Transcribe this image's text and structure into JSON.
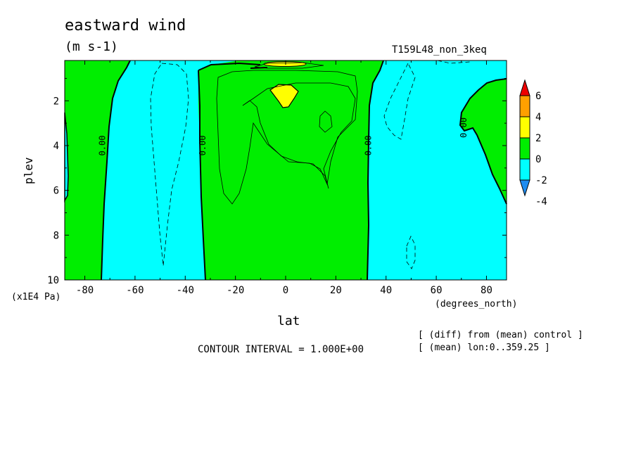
{
  "header": {
    "title": "eastward wind",
    "units": "(m s-1)",
    "run_name": "T159L48_non_3keq"
  },
  "footer": {
    "contour_interval": "CONTOUR INTERVAL = 1.000E+00",
    "note_diff": "[ (diff) from (mean) control ]",
    "note_mean": "[ (mean) lon:0..359.25 ]"
  },
  "chart_data": {
    "type": "contour",
    "xlabel": "lat",
    "ylabel": "plev",
    "x_unit_label": "(degrees_north)",
    "y_unit_label": "(x1E4 Pa)",
    "xlim": [
      -88,
      88
    ],
    "ylim": [
      10,
      0.2
    ],
    "x_ticks": [
      -80,
      -60,
      -40,
      -20,
      0,
      20,
      40,
      60,
      80
    ],
    "x_tick_labels": [
      "-80",
      "-60",
      "-40",
      "-20",
      "0",
      "20",
      "40",
      "60",
      "80"
    ],
    "y_ticks": [
      2,
      4,
      6,
      8,
      10
    ],
    "y_tick_labels": [
      "2",
      "4",
      "6",
      "8",
      "10"
    ],
    "contour_interval": 1.0,
    "colorbar": {
      "levels": [
        -4,
        -2,
        0,
        2,
        4,
        6
      ],
      "level_labels": [
        "-4",
        "-2",
        "0",
        "2",
        "4",
        "6"
      ],
      "colors": [
        "#1e8cf0",
        "#00ffff",
        "#00ee00",
        "#ffff00",
        "#ffa000",
        "#ee0000"
      ],
      "extend": "both"
    },
    "zero_contour_labels": [
      "0.00",
      "0.00",
      "0.00",
      "0.00"
    ],
    "zero_crossing_latitudes_at_4e4Pa": [
      -73,
      -33,
      33,
      72
    ],
    "features": [
      {
        "name": "negative band SH mid-latitudes",
        "lat_range": [
          -73,
          -33
        ],
        "sign": "negative"
      },
      {
        "name": "positive band tropics",
        "lat_range": [
          -33,
          35
        ],
        "sign": "positive"
      },
      {
        "name": "positive maximum",
        "lat": 0,
        "plev": 1.8,
        "value_range": [
          2,
          4
        ]
      },
      {
        "name": "negative band NH mid-latitudes",
        "lat_range": [
          35,
          70
        ],
        "sign": "negative"
      }
    ]
  }
}
